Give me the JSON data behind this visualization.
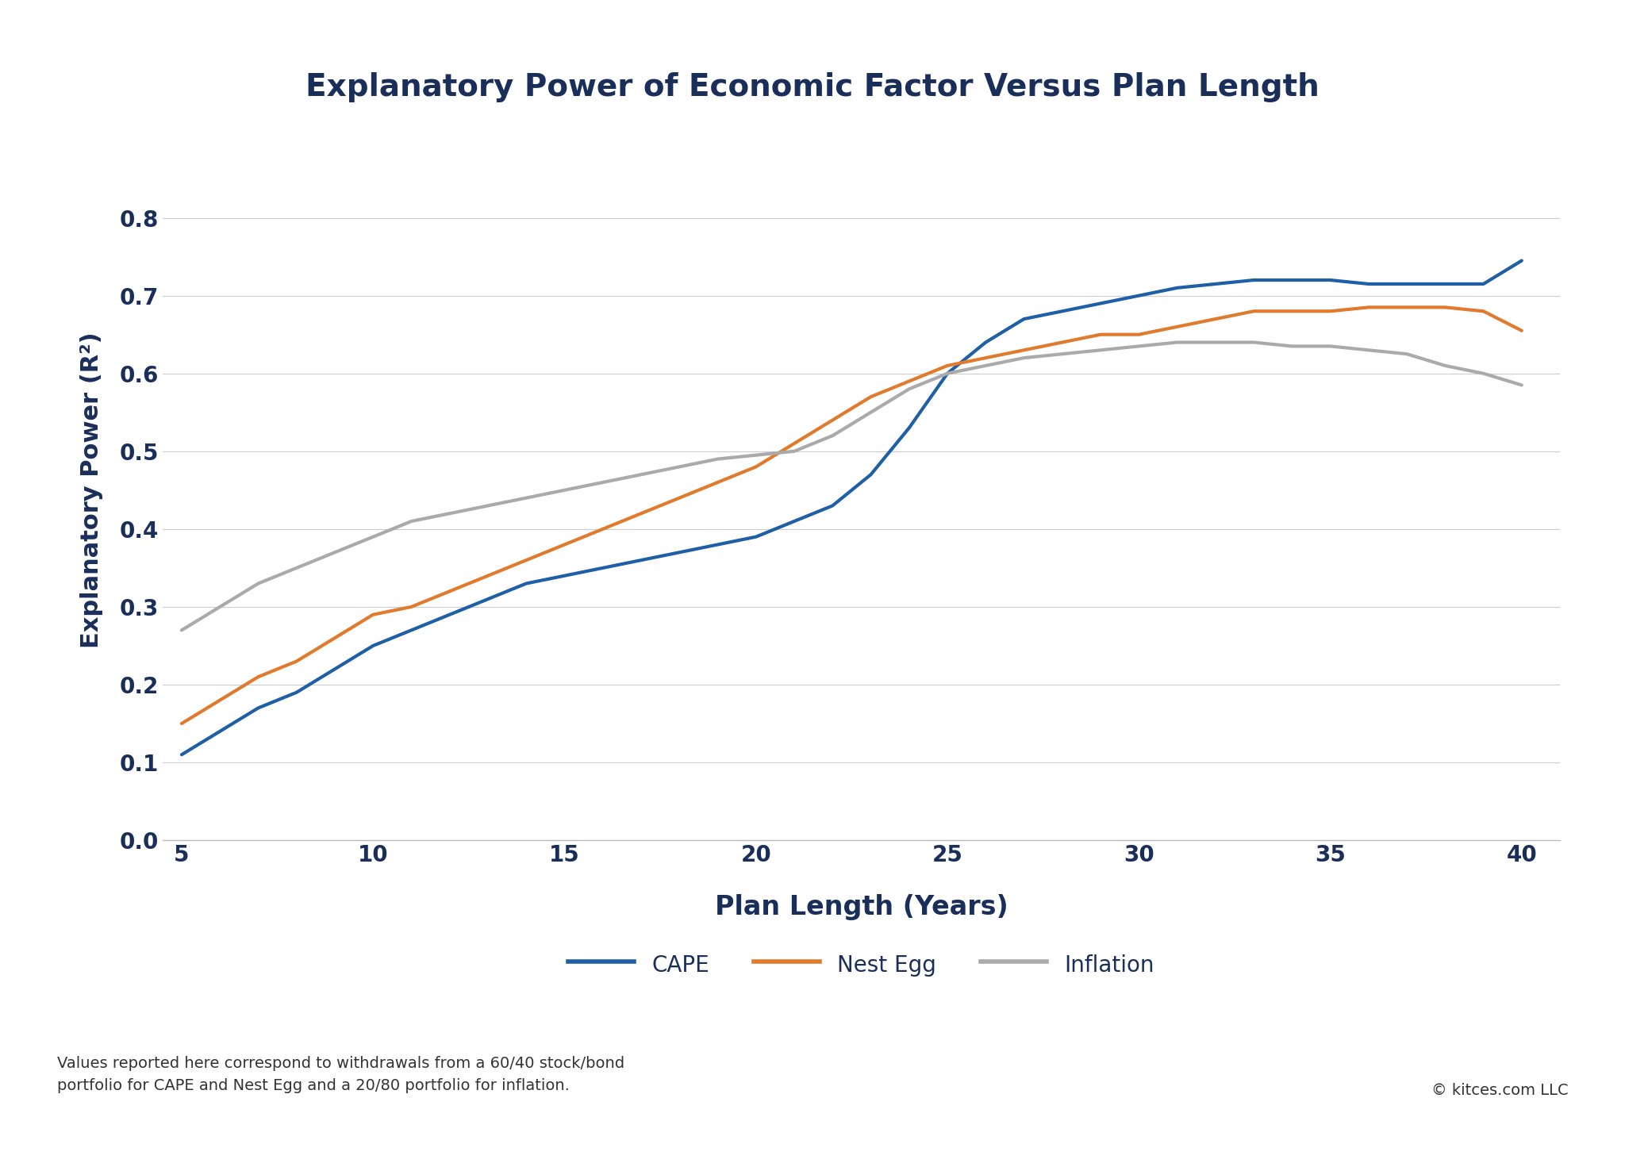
{
  "title": "Explanatory Power of Economic Factor Versus Plan Length",
  "xlabel": "Plan Length (Years)",
  "ylabel": "Explanatory Power (R²)",
  "background_color": "#ffffff",
  "border_color": "#1a2e5a",
  "x_ticks": [
    5,
    10,
    15,
    20,
    25,
    30,
    35,
    40
  ],
  "ylim": [
    0.0,
    0.9
  ],
  "xlim": [
    4.5,
    41.0
  ],
  "y_ticks": [
    0.0,
    0.1,
    0.2,
    0.3,
    0.4,
    0.5,
    0.6,
    0.7,
    0.8
  ],
  "cape_color": "#1f5fa6",
  "nest_egg_color": "#e07b2e",
  "inflation_color": "#aaaaaa",
  "cape": {
    "x": [
      5,
      6,
      7,
      8,
      9,
      10,
      11,
      12,
      13,
      14,
      15,
      16,
      17,
      18,
      19,
      20,
      21,
      22,
      23,
      24,
      25,
      26,
      27,
      28,
      29,
      30,
      31,
      32,
      33,
      34,
      35,
      36,
      37,
      38,
      39,
      40
    ],
    "y": [
      0.11,
      0.14,
      0.17,
      0.19,
      0.22,
      0.25,
      0.27,
      0.29,
      0.31,
      0.33,
      0.34,
      0.35,
      0.36,
      0.37,
      0.38,
      0.39,
      0.41,
      0.43,
      0.47,
      0.53,
      0.6,
      0.64,
      0.67,
      0.68,
      0.69,
      0.7,
      0.71,
      0.715,
      0.72,
      0.72,
      0.72,
      0.715,
      0.715,
      0.715,
      0.715,
      0.745
    ]
  },
  "nest_egg": {
    "x": [
      5,
      6,
      7,
      8,
      9,
      10,
      11,
      12,
      13,
      14,
      15,
      16,
      17,
      18,
      19,
      20,
      21,
      22,
      23,
      24,
      25,
      26,
      27,
      28,
      29,
      30,
      31,
      32,
      33,
      34,
      35,
      36,
      37,
      38,
      39,
      40
    ],
    "y": [
      0.15,
      0.18,
      0.21,
      0.23,
      0.26,
      0.29,
      0.3,
      0.32,
      0.34,
      0.36,
      0.38,
      0.4,
      0.42,
      0.44,
      0.46,
      0.48,
      0.51,
      0.54,
      0.57,
      0.59,
      0.61,
      0.62,
      0.63,
      0.64,
      0.65,
      0.65,
      0.66,
      0.67,
      0.68,
      0.68,
      0.68,
      0.685,
      0.685,
      0.685,
      0.68,
      0.655
    ]
  },
  "inflation": {
    "x": [
      5,
      6,
      7,
      8,
      9,
      10,
      11,
      12,
      13,
      14,
      15,
      16,
      17,
      18,
      19,
      20,
      21,
      22,
      23,
      24,
      25,
      26,
      27,
      28,
      29,
      30,
      31,
      32,
      33,
      34,
      35,
      36,
      37,
      38,
      39,
      40
    ],
    "y": [
      0.27,
      0.3,
      0.33,
      0.35,
      0.37,
      0.39,
      0.41,
      0.42,
      0.43,
      0.44,
      0.45,
      0.46,
      0.47,
      0.48,
      0.49,
      0.495,
      0.5,
      0.52,
      0.55,
      0.58,
      0.6,
      0.61,
      0.62,
      0.625,
      0.63,
      0.635,
      0.64,
      0.64,
      0.64,
      0.635,
      0.635,
      0.63,
      0.625,
      0.61,
      0.6,
      0.585
    ]
  },
  "footer_text": "Values reported here correspond to withdrawals from a 60/40 stock/bond\nportfolio for CAPE and Nest Egg and a 20/80 portfolio for inflation.",
  "copyright_text": "© kitces.com LLC",
  "title_color": "#1a2e5a",
  "axis_label_color": "#1a2e5a",
  "tick_label_color": "#1a2e5a",
  "grid_color": "#cccccc",
  "line_width": 3.0,
  "border_thickness": 12
}
